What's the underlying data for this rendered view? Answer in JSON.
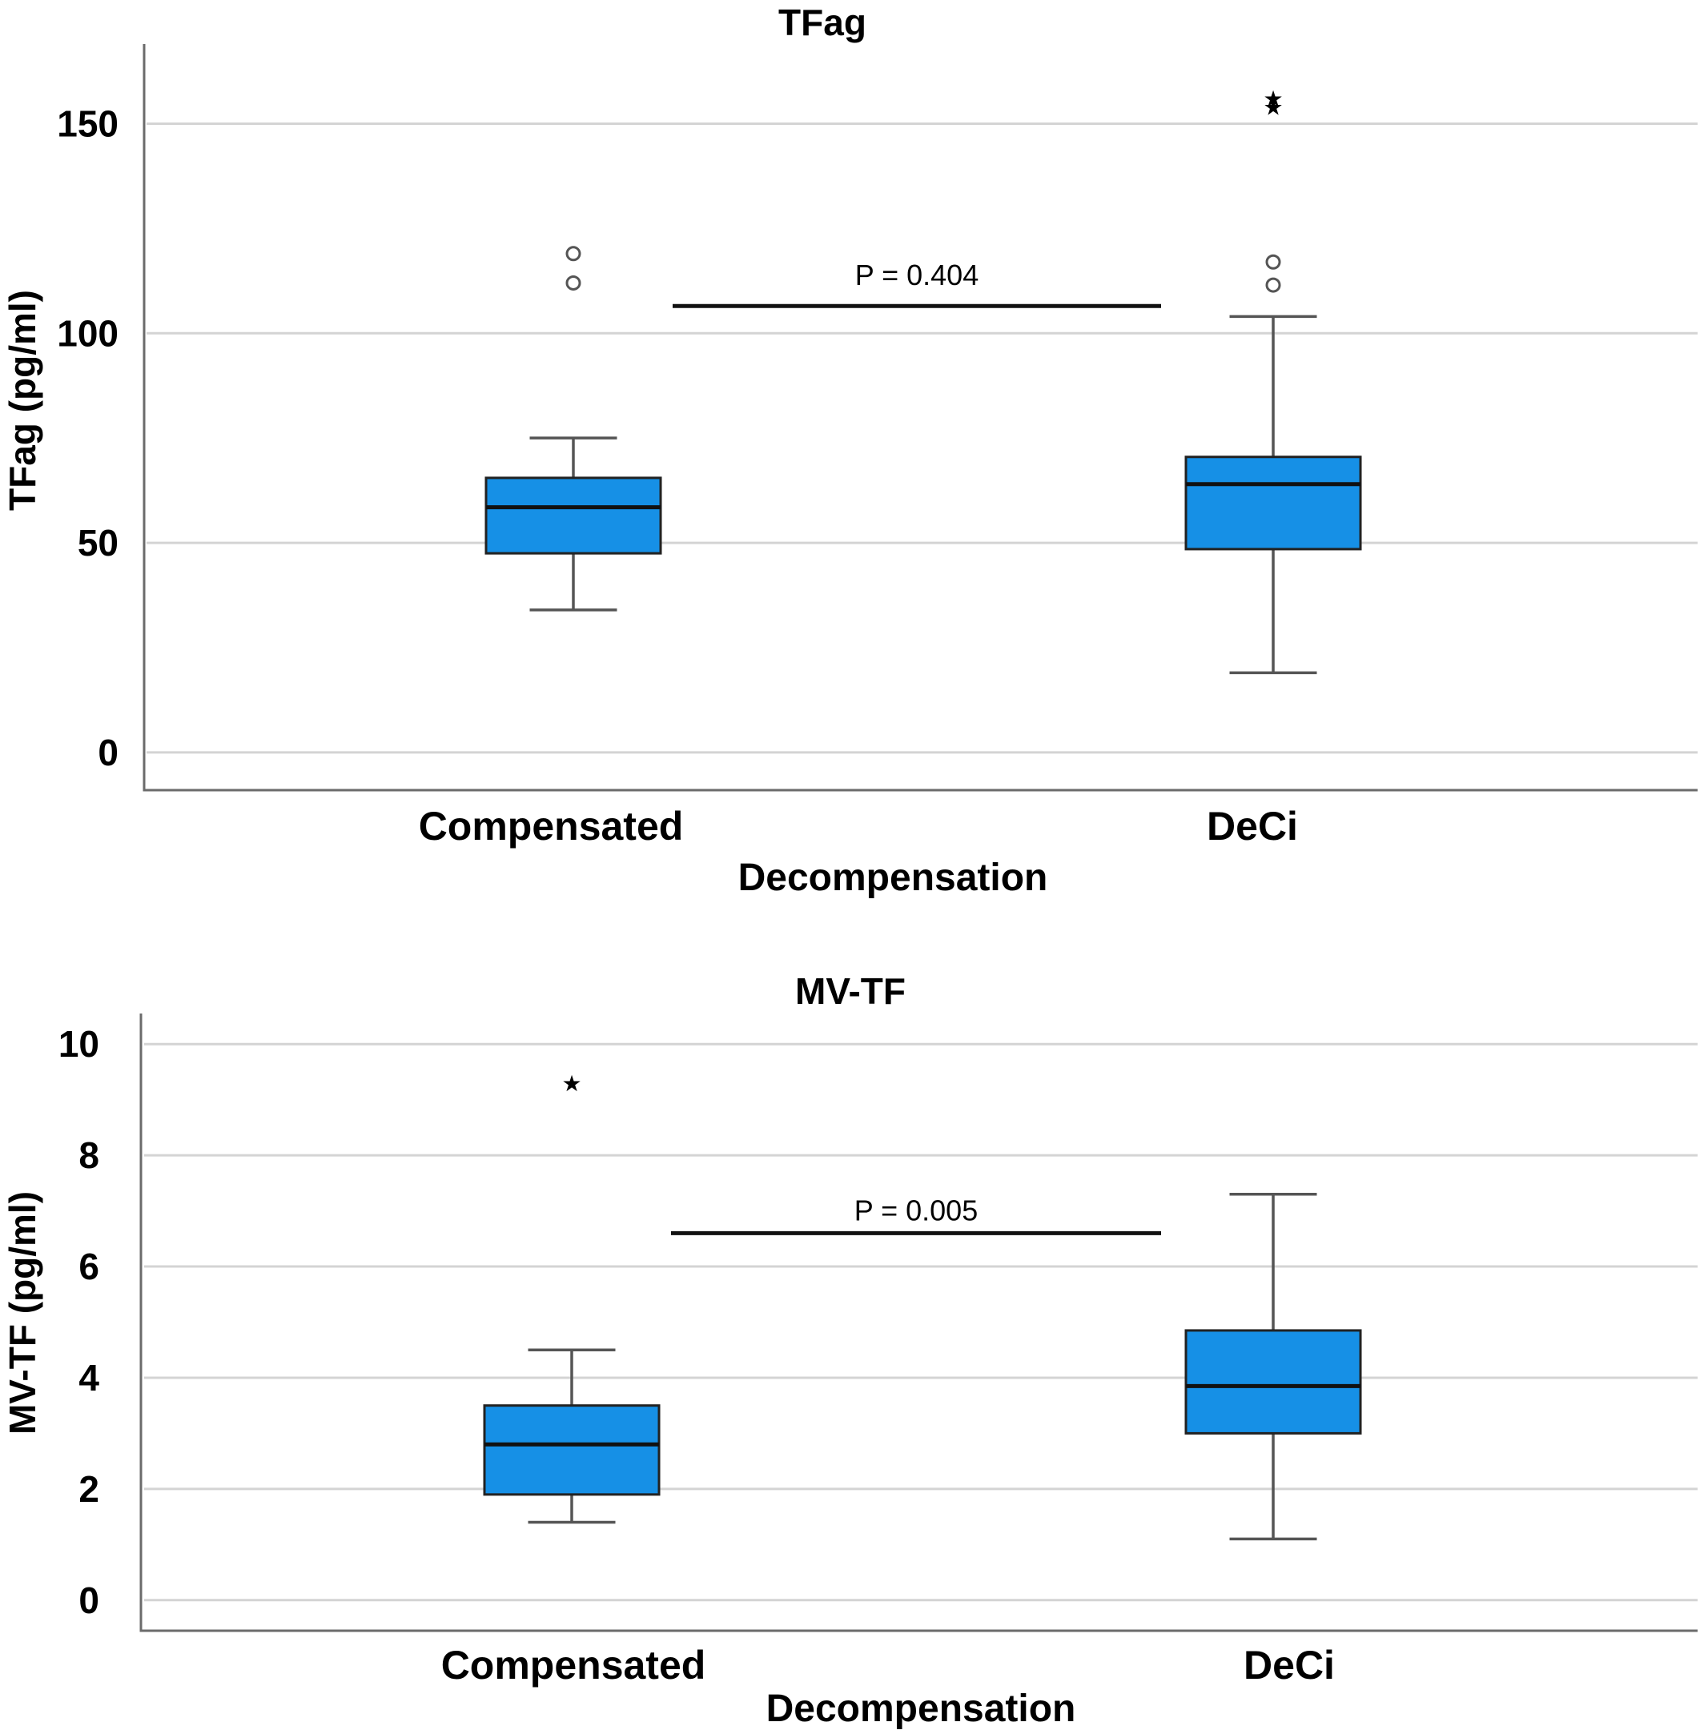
{
  "chart_data": [
    {
      "type": "box",
      "title": "TFag",
      "xlabel": "Decompensation",
      "ylabel": "TFag (pg/ml)",
      "ylim": [
        -9,
        169
      ],
      "yticks": [
        0,
        50,
        100,
        150
      ],
      "grid": true,
      "box_color": "#1690e6",
      "categories": [
        "Compensated",
        "DeCi"
      ],
      "boxes": [
        {
          "category": "Compensated",
          "whisker_low": 34,
          "q1": 47.5,
          "median": 58.5,
          "q3": 65.5,
          "whisker_high": 75,
          "outliers_circle": [
            112,
            119
          ],
          "outliers_star": []
        },
        {
          "category": "DeCi",
          "whisker_low": 19,
          "q1": 48.5,
          "median": 64,
          "q3": 70.5,
          "whisker_high": 104,
          "outliers_circle": [
            111.5,
            117
          ],
          "outliers_star": [
            154,
            156
          ]
        }
      ],
      "annotation": {
        "text": "P = 0.404",
        "y": 106.5
      }
    },
    {
      "type": "box",
      "title": "MV-TF",
      "xlabel": "Decompensation",
      "ylabel": "MV-TF (pg/ml)",
      "ylim": [
        -0.55,
        10.55
      ],
      "yticks": [
        0,
        2,
        4,
        6,
        8,
        10
      ],
      "grid": true,
      "box_color": "#1690e6",
      "categories": [
        "Compensated",
        "DeCi"
      ],
      "boxes": [
        {
          "category": "Compensated",
          "whisker_low": 1.4,
          "q1": 1.9,
          "median": 2.8,
          "q3": 3.5,
          "whisker_high": 4.5,
          "outliers_circle": [],
          "outliers_star": [
            9.3
          ]
        },
        {
          "category": "DeCi",
          "whisker_low": 1.1,
          "q1": 3.0,
          "median": 3.85,
          "q3": 4.85,
          "whisker_high": 7.3,
          "outliers_circle": [],
          "outliers_star": []
        }
      ],
      "annotation": {
        "text": "P = 0.005",
        "y": 6.6
      }
    }
  ]
}
